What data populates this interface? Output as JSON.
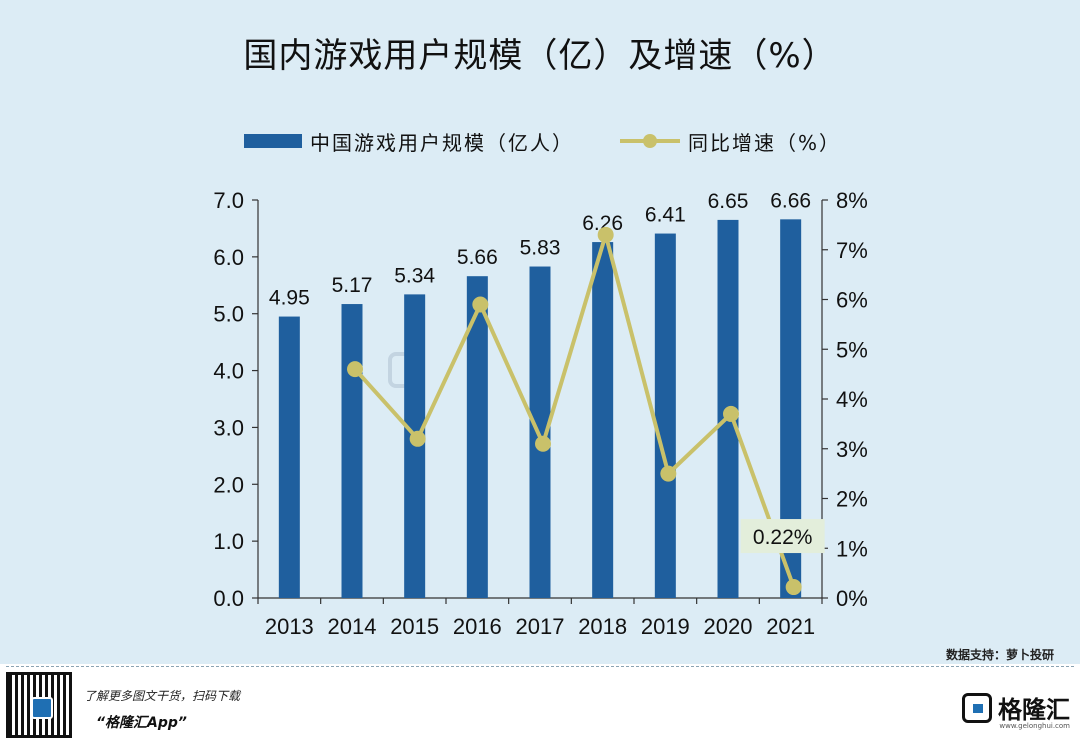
{
  "title": "国内游戏用户规模（亿）及增速（%）",
  "source": "数据支持：萝卜投研",
  "footer": {
    "promo": "了解更多图文干货，扫码下载",
    "app_name": "“格隆汇App”",
    "brand_name": "格隆汇",
    "brand_url": "www.gelonghui.com"
  },
  "colors": {
    "bar": "#1f5f9e",
    "line": "#c9c16a",
    "label_box": "#e3eedb",
    "background": "#dcecf5"
  },
  "chart_data": {
    "type": "bar",
    "categories": [
      "2013",
      "2014",
      "2015",
      "2016",
      "2017",
      "2018",
      "2019",
      "2020",
      "2021"
    ],
    "series": [
      {
        "name": "中国游戏用户规模（亿人）",
        "type": "bar",
        "axis": "left",
        "values": [
          4.95,
          5.17,
          5.34,
          5.66,
          5.83,
          6.26,
          6.41,
          6.65,
          6.66
        ],
        "labels": [
          "4.95",
          "5.17",
          "5.34",
          "5.66",
          "5.83",
          "6.26",
          "6.41",
          "6.65",
          "6.66"
        ]
      },
      {
        "name": "同比增速（%）",
        "type": "line",
        "axis": "right",
        "values": [
          null,
          4.6,
          3.2,
          5.9,
          3.1,
          7.3,
          2.5,
          3.7,
          0.22
        ],
        "highlight_label": "0.22%",
        "highlight_index": 8
      }
    ],
    "left_axis": {
      "ylim": [
        0,
        7
      ],
      "ticks": [
        "0.0",
        "1.0",
        "2.0",
        "3.0",
        "4.0",
        "5.0",
        "6.0",
        "7.0"
      ]
    },
    "right_axis": {
      "ylim": [
        0,
        8
      ],
      "ticks": [
        "0%",
        "1%",
        "2%",
        "3%",
        "4%",
        "5%",
        "6%",
        "7%",
        "8%"
      ]
    },
    "legend_position": "top",
    "grid": false
  }
}
